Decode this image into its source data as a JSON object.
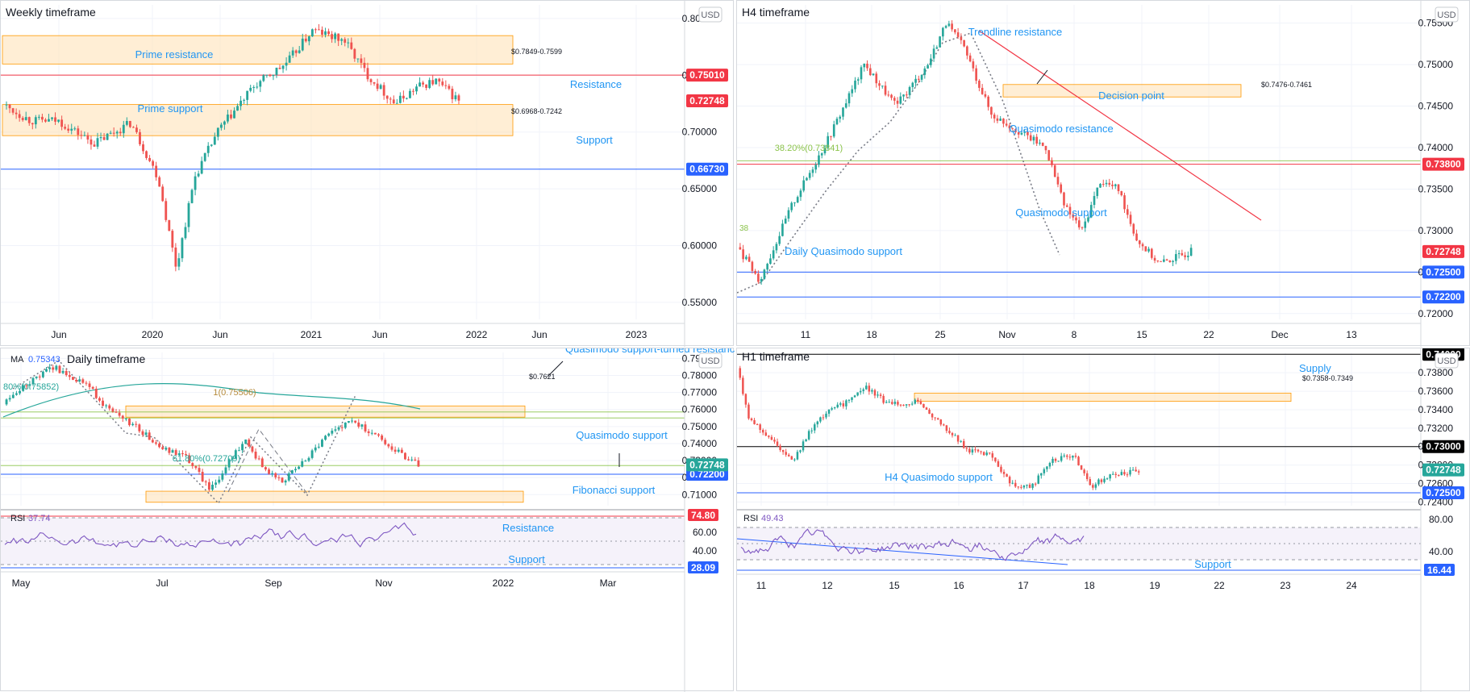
{
  "panels": [
    {
      "id": "weekly",
      "title": "Weekly timeframe",
      "currency": "USD",
      "chart_data": {
        "type": "candlestick",
        "yaxis_ticks": [
          "0.80000",
          "0.75000",
          "0.70000",
          "0.65000",
          "0.60000",
          "0.55000"
        ],
        "ylim": [
          0.535,
          0.812
        ],
        "xaxis_ticks": [
          "Jun",
          "2020",
          "Jun",
          "2021",
          "Jun",
          "2022",
          "Jun",
          "2023"
        ],
        "zones": [
          {
            "label": "Prime resistance",
            "range_label": "$0.7849-0.7599",
            "low": 0.7599,
            "high": 0.7849
          },
          {
            "label": "Prime support",
            "range_label": "$0.6968-0.7242",
            "low": 0.6968,
            "high": 0.7242
          }
        ],
        "levels": [
          {
            "label": "Resistance",
            "price": 0.7501,
            "tag": "0.75010",
            "color": "#f23645"
          },
          {
            "label": "Support",
            "price": 0.6673,
            "tag": "0.66730",
            "color": "#2962ff"
          }
        ],
        "current_price": {
          "price": 0.72748,
          "tag": "0.72748",
          "color": "#f23645"
        }
      }
    },
    {
      "id": "h4",
      "title": "H4 timeframe",
      "currency": "USD",
      "chart_data": {
        "type": "candlestick",
        "yaxis_ticks": [
          "0.75500",
          "0.75000",
          "0.74500",
          "0.74000",
          "0.73500",
          "0.73000",
          "0.72500",
          "0.72000"
        ],
        "ylim": [
          0.7193,
          0.7572
        ],
        "xaxis_ticks": [
          "11",
          "18",
          "25",
          "Nov",
          "8",
          "15",
          "22",
          "Dec",
          "13"
        ],
        "annotations": [
          "Trendline resistance",
          "Decision point",
          "Quasimodo resistance",
          "Quasimodo support",
          "Daily Quasimodo support"
        ],
        "zones": [
          {
            "label": "Decision point",
            "range_label": "$0.7476-0.7461",
            "low": 0.7461,
            "high": 0.7476
          }
        ],
        "fibonacci": {
          "label": "38.20%(0.73841)",
          "price": 0.73841
        },
        "fib_partial_label": "38",
        "levels": [
          {
            "label": "Quasimodo resistance",
            "price": 0.738,
            "tag": "0.73800",
            "color": "#f23645"
          },
          {
            "label": "Quasimodo support",
            "price": 0.725,
            "tag": "0.72500",
            "color": "#2962ff"
          },
          {
            "label": "Daily Quasimodo support",
            "price": 0.722,
            "tag": "0.72200",
            "color": "#2962ff"
          }
        ],
        "current_price": {
          "price": 0.72748,
          "tag": "0.72748",
          "color": "#f23645"
        }
      }
    },
    {
      "id": "daily",
      "title": "Daily timeframe",
      "currency": "USD",
      "indicator": {
        "name": "MA",
        "value": "0.75343"
      },
      "chart_data": {
        "type": "candlestick",
        "yaxis_ticks": [
          "0.79000",
          "0.78000",
          "0.77000",
          "0.76000",
          "0.75000",
          "0.74000",
          "0.73000",
          "0.72000",
          "0.71000"
        ],
        "ylim": [
          0.7035,
          0.7935
        ],
        "xaxis_ticks": [
          "May",
          "Jul",
          "Sep",
          "Nov",
          "2022",
          "Mar"
        ],
        "annotations": [
          "Quasimodo support-turned resistance",
          "Quasimodo support",
          "Fibonacci support"
        ],
        "zones": [
          {
            "label": "Quasimodo support-turned resistance",
            "range_label": "$0.7621",
            "low": 0.7555,
            "high": 0.7621
          },
          {
            "label": "Fibonacci support",
            "low": 0.7055,
            "high": 0.712
          }
        ],
        "fibonacci": [
          {
            "label": "61.80%(0.72709)",
            "price": 0.72709
          },
          {
            "label": "1(0.75506)",
            "price": 0.75506
          },
          {
            "label": "80%(0.75852)",
            "price": 0.75852
          }
        ],
        "levels": [
          {
            "label": "Quasimodo support",
            "price": 0.722,
            "tag": "0.72200",
            "color": "#2962ff"
          }
        ],
        "current_price": {
          "price": 0.72748,
          "tag": "0.72748",
          "color": "#26a69a"
        }
      },
      "rsi": {
        "label": "RSI",
        "value": "37.74",
        "ticks": [
          "60.00",
          "40.00"
        ],
        "annotations": [
          "Resistance",
          "Support"
        ],
        "tags": [
          {
            "value": "74.80",
            "color": "#f23645"
          },
          {
            "value": "28.09",
            "color": "#2962ff"
          }
        ]
      }
    },
    {
      "id": "h1",
      "title": "H1 timeframe",
      "currency": "USD",
      "chart_data": {
        "type": "candlestick",
        "yaxis_ticks": [
          "0.73800",
          "0.73600",
          "0.73400",
          "0.73200",
          "0.73000",
          "0.72800",
          "0.72600",
          "0.72400"
        ],
        "ylim": [
          0.7236,
          0.7402
        ],
        "xaxis_ticks": [
          "11",
          "12",
          "15",
          "16",
          "17",
          "18",
          "19",
          "22",
          "23",
          "24"
        ],
        "annotations": [
          "Supply",
          "H4 Quasimodo support"
        ],
        "zones": [
          {
            "label": "Supply",
            "range_label": "$0.7358-0.7349",
            "low": 0.7349,
            "high": 0.7358
          }
        ],
        "levels": [
          {
            "label": "",
            "price": 0.74,
            "tag": "0.74000",
            "color": "#000000"
          },
          {
            "label": "",
            "price": 0.73,
            "tag": "0.73000",
            "color": "#000000"
          },
          {
            "label": "H4 Quasimodo support",
            "price": 0.725,
            "tag": "0.72500",
            "color": "#2962ff"
          }
        ],
        "current_price": {
          "price": 0.72748,
          "tag": "0.72748",
          "color": "#26a69a"
        }
      },
      "rsi": {
        "label": "RSI",
        "value": "49.43",
        "ticks": [
          "80.00",
          "40.00"
        ],
        "annotations": [
          "Support"
        ],
        "tags": [
          {
            "value": "16.44",
            "color": "#2962ff"
          }
        ]
      }
    }
  ]
}
